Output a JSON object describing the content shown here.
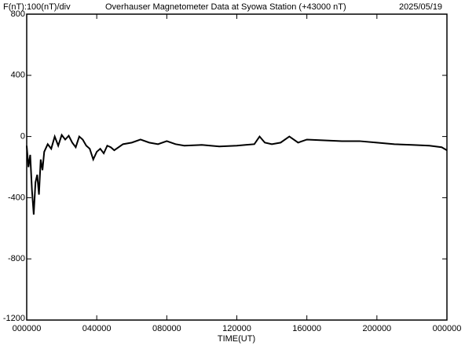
{
  "chart_data": {
    "type": "line",
    "title": "Overhauser Magnetometer Data at Syowa Station (+43000 nT)",
    "scale_label": "F(nT):100(nT)/div",
    "date": "2025/05/19",
    "x_label": "TIME(UT)",
    "xlim": [
      0,
      24
    ],
    "xticks": [
      {
        "value": 0,
        "label": "000000"
      },
      {
        "value": 4,
        "label": "040000"
      },
      {
        "value": 8,
        "label": "080000"
      },
      {
        "value": 12,
        "label": "120000"
      },
      {
        "value": 16,
        "label": "160000"
      },
      {
        "value": 20,
        "label": "200000"
      },
      {
        "value": 24,
        "label": "000000"
      }
    ],
    "ylim": [
      -1200,
      800
    ],
    "yticks": [
      -1200,
      -800,
      -400,
      0,
      400,
      800
    ],
    "series": [
      {
        "name": "F",
        "color": "#000000",
        "x": [
          0,
          0.1,
          0.2,
          0.3,
          0.4,
          0.5,
          0.6,
          0.7,
          0.8,
          0.9,
          1.0,
          1.2,
          1.4,
          1.6,
          1.8,
          2.0,
          2.2,
          2.4,
          2.6,
          2.8,
          3.0,
          3.2,
          3.4,
          3.6,
          3.8,
          4.0,
          4.2,
          4.4,
          4.6,
          4.8,
          5.0,
          5.5,
          6.0,
          6.5,
          7.0,
          7.5,
          8.0,
          8.5,
          9.0,
          10.0,
          11.0,
          12.0,
          12.5,
          13.0,
          13.3,
          13.6,
          14.0,
          14.5,
          15.0,
          15.5,
          16.0,
          17.0,
          18.0,
          19.0,
          20.0,
          21.0,
          22.0,
          23.0,
          23.7,
          24.0
        ],
        "values": [
          -60,
          -200,
          -120,
          -350,
          -510,
          -300,
          -250,
          -380,
          -150,
          -220,
          -100,
          -50,
          -80,
          0,
          -60,
          10,
          -20,
          5,
          -40,
          -70,
          0,
          -20,
          -60,
          -80,
          -150,
          -100,
          -80,
          -110,
          -60,
          -70,
          -90,
          -50,
          -40,
          -20,
          -40,
          -50,
          -30,
          -50,
          -60,
          -55,
          -65,
          -60,
          -55,
          -50,
          0,
          -40,
          -50,
          -40,
          0,
          -40,
          -20,
          -25,
          -30,
          -30,
          -40,
          -50,
          -55,
          -60,
          -70,
          -90
        ]
      }
    ]
  }
}
